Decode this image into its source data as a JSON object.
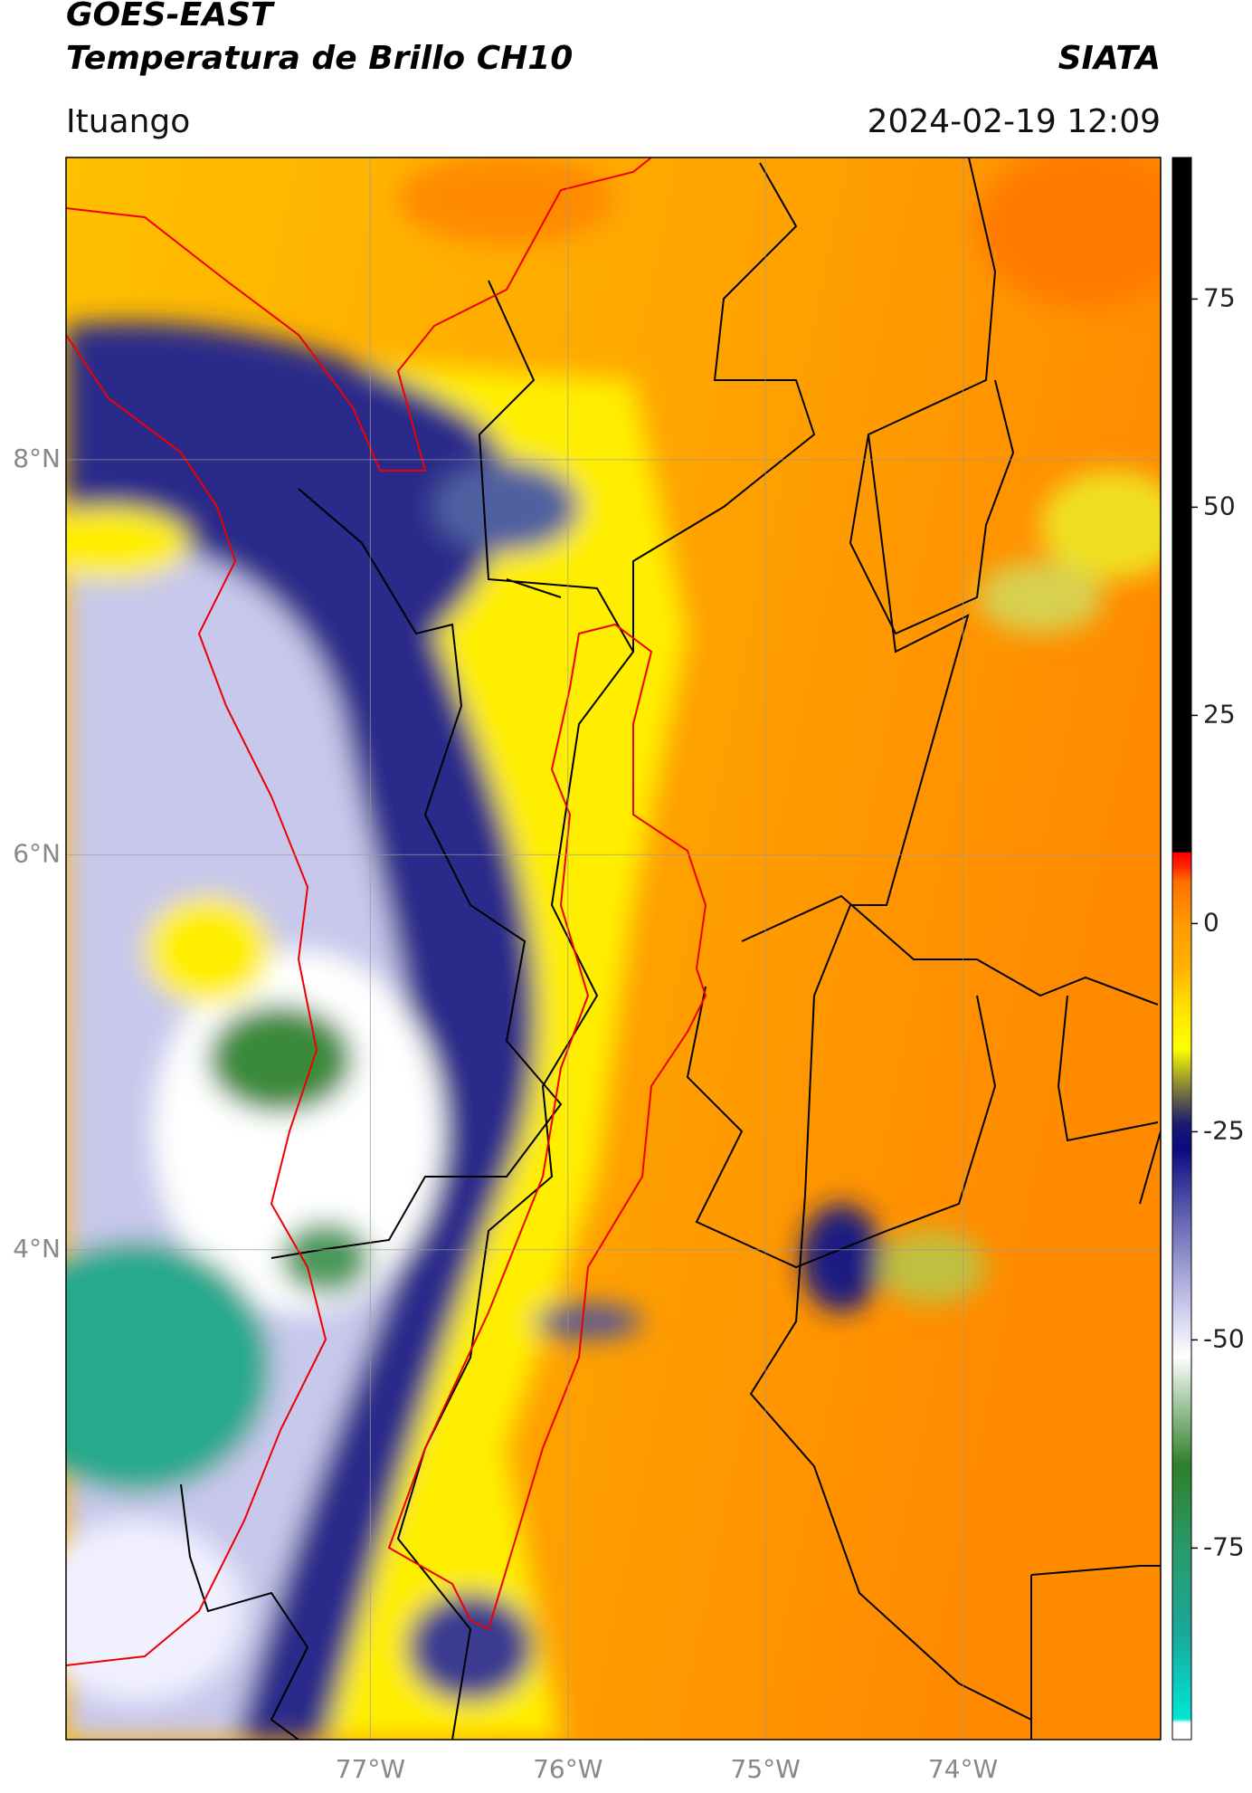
{
  "header": {
    "title": "GOES-EAST",
    "subtitle": "Temperatura de Brillo CH10",
    "source": "SIATA",
    "location": "Ituango",
    "datetime": "2024-02-19 12:09"
  },
  "map": {
    "xlim": [
      -78.54,
      -73.0
    ],
    "ylim": [
      1.52,
      9.53
    ],
    "xticks": [
      {
        "value": -77,
        "label": "77°W"
      },
      {
        "value": -76,
        "label": "76°W"
      },
      {
        "value": -75,
        "label": "75°W"
      },
      {
        "value": -74,
        "label": "74°W"
      }
    ],
    "yticks": [
      {
        "value": 8,
        "label": "8°N"
      },
      {
        "value": 6,
        "label": "6°N"
      },
      {
        "value": 4,
        "label": "4°N"
      }
    ],
    "grid": true
  },
  "colorbar": {
    "lim": [
      -98,
      92
    ],
    "ticks": [
      75,
      50,
      25,
      0,
      -25,
      -50,
      -75
    ],
    "stops": [
      {
        "value": -98,
        "color": "#ffffff"
      },
      {
        "value": -96,
        "color": "#ffffff"
      },
      {
        "value": -95.5,
        "color": "#00e5d5"
      },
      {
        "value": -85,
        "color": "#1aa79a"
      },
      {
        "value": -75,
        "color": "#2a9a6a"
      },
      {
        "value": -65,
        "color": "#2f7f2a"
      },
      {
        "value": -58,
        "color": "#9cc49a"
      },
      {
        "value": -52,
        "color": "#ffffff"
      },
      {
        "value": -45,
        "color": "#c0c0e8"
      },
      {
        "value": -35,
        "color": "#6060b0"
      },
      {
        "value": -27,
        "color": "#0a0a80"
      },
      {
        "value": -24,
        "color": "#1a1a70"
      },
      {
        "value": -20,
        "color": "#7a7a3a"
      },
      {
        "value": -15,
        "color": "#ffff00"
      },
      {
        "value": -10,
        "color": "#ffe000"
      },
      {
        "value": -5,
        "color": "#ffb000"
      },
      {
        "value": 0,
        "color": "#ff9a00"
      },
      {
        "value": 5,
        "color": "#ff7000"
      },
      {
        "value": 7,
        "color": "#ff2000"
      },
      {
        "value": 8.5,
        "color": "#ff0000"
      },
      {
        "value": 8.6,
        "color": "#000000"
      },
      {
        "value": 92,
        "color": "#000000"
      }
    ]
  }
}
